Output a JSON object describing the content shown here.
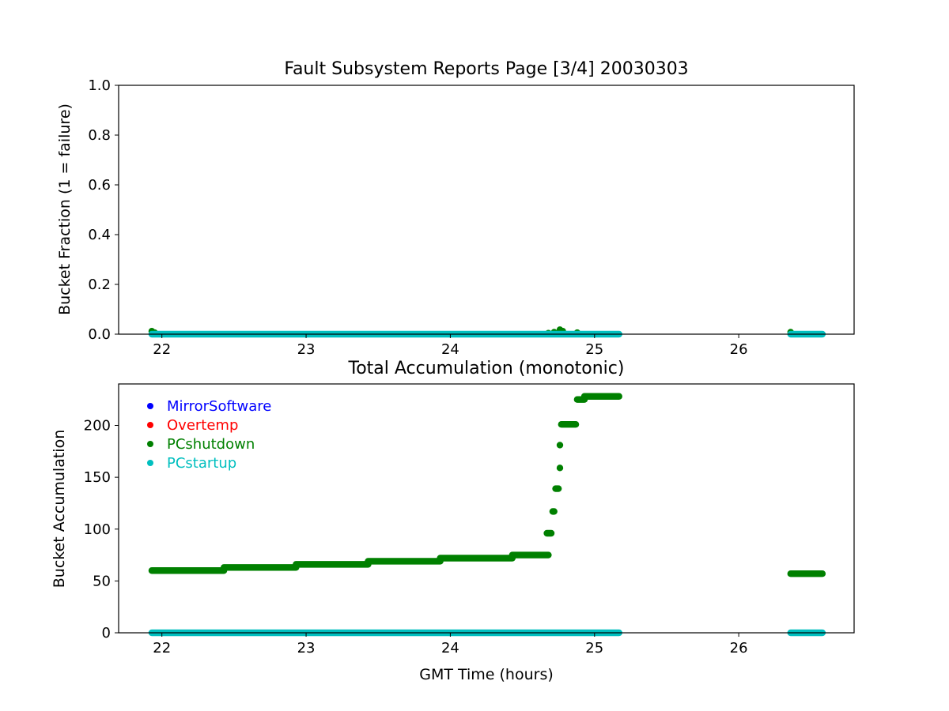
{
  "chart_data": [
    {
      "type": "scatter",
      "title": "Fault Subsystem Reports Page [3/4] 20030303",
      "xlabel": "",
      "ylabel": "Bucket Fraction (1 = failure)",
      "xlim": [
        21.7,
        26.8
      ],
      "ylim": [
        0,
        1.0
      ],
      "xticks": [
        "22",
        "23",
        "24",
        "25",
        "26"
      ],
      "xtick_values": [
        22,
        23,
        24,
        25,
        26
      ],
      "yticks": [
        "0.0",
        "0.2",
        "0.4",
        "0.6",
        "0.8",
        "1.0"
      ],
      "ytick_values": [
        0,
        0.2,
        0.4,
        0.6,
        0.8,
        1.0
      ],
      "grid": false,
      "series": [
        {
          "name": "MirrorSoftware",
          "color": "#0000ff",
          "x": [],
          "y": []
        },
        {
          "name": "Overtemp",
          "color": "#ff0000",
          "x": [],
          "y": []
        },
        {
          "name": "PCshutdown",
          "color": "#008000",
          "x": [
            21.93,
            21.95,
            24.68,
            24.72,
            24.76,
            24.78,
            24.88,
            26.36
          ],
          "y": [
            0.012,
            0.006,
            0.004,
            0.008,
            0.018,
            0.012,
            0.006,
            0.008
          ]
        },
        {
          "name": "PCstartup",
          "color": "#00bfbf",
          "x": [
            21.93,
            25.17,
            26.36,
            26.58
          ],
          "y": [
            0,
            0,
            0,
            0
          ],
          "segments": [
            [
              21.93,
              25.17
            ],
            [
              26.36,
              26.58
            ]
          ]
        }
      ]
    },
    {
      "type": "scatter",
      "title": "Total Accumulation (monotonic)",
      "xlabel": "GMT Time (hours)",
      "ylabel": "Bucket Accumulation",
      "xlim": [
        21.7,
        26.8
      ],
      "ylim": [
        0,
        240
      ],
      "xticks": [
        "22",
        "23",
        "24",
        "25",
        "26"
      ],
      "xtick_values": [
        22,
        23,
        24,
        25,
        26
      ],
      "yticks": [
        "0",
        "50",
        "100",
        "150",
        "200"
      ],
      "ytick_values": [
        0,
        50,
        100,
        150,
        200
      ],
      "grid": false,
      "legend": {
        "position": "top-left",
        "entries": [
          "MirrorSoftware",
          "Overtemp",
          "PCshutdown",
          "PCstartup"
        ]
      },
      "series": [
        {
          "name": "MirrorSoftware",
          "color": "#0000ff",
          "x": [],
          "y": []
        },
        {
          "name": "Overtemp",
          "color": "#ff0000",
          "x": [],
          "y": []
        },
        {
          "name": "PCshutdown",
          "color": "#008000",
          "steps": [
            {
              "x0": 21.93,
              "x1": 22.43,
              "y": 60
            },
            {
              "x0": 22.43,
              "x1": 22.93,
              "y": 63
            },
            {
              "x0": 22.93,
              "x1": 23.43,
              "y": 66
            },
            {
              "x0": 23.43,
              "x1": 23.93,
              "y": 69
            },
            {
              "x0": 23.93,
              "x1": 24.43,
              "y": 72
            },
            {
              "x0": 24.43,
              "x1": 24.68,
              "y": 75
            },
            {
              "x0": 24.67,
              "x1": 24.7,
              "y": 96
            },
            {
              "x0": 24.71,
              "x1": 24.72,
              "y": 117
            },
            {
              "x0": 24.73,
              "x1": 24.75,
              "y": 139
            },
            {
              "x0": 24.76,
              "x1": 24.76,
              "y": 159
            },
            {
              "x0": 24.76,
              "x1": 24.76,
              "y": 181
            },
            {
              "x0": 24.77,
              "x1": 24.87,
              "y": 201
            },
            {
              "x0": 24.88,
              "x1": 24.93,
              "y": 225
            },
            {
              "x0": 24.93,
              "x1": 25.17,
              "y": 228
            },
            {
              "x0": 26.36,
              "x1": 26.58,
              "y": 57
            }
          ]
        },
        {
          "name": "PCstartup",
          "color": "#00bfbf",
          "x": [
            21.93,
            25.17,
            26.36,
            26.58
          ],
          "y": [
            0,
            0,
            0,
            0
          ],
          "segments": [
            [
              21.93,
              25.17
            ],
            [
              26.36,
              26.58
            ]
          ]
        }
      ]
    }
  ]
}
